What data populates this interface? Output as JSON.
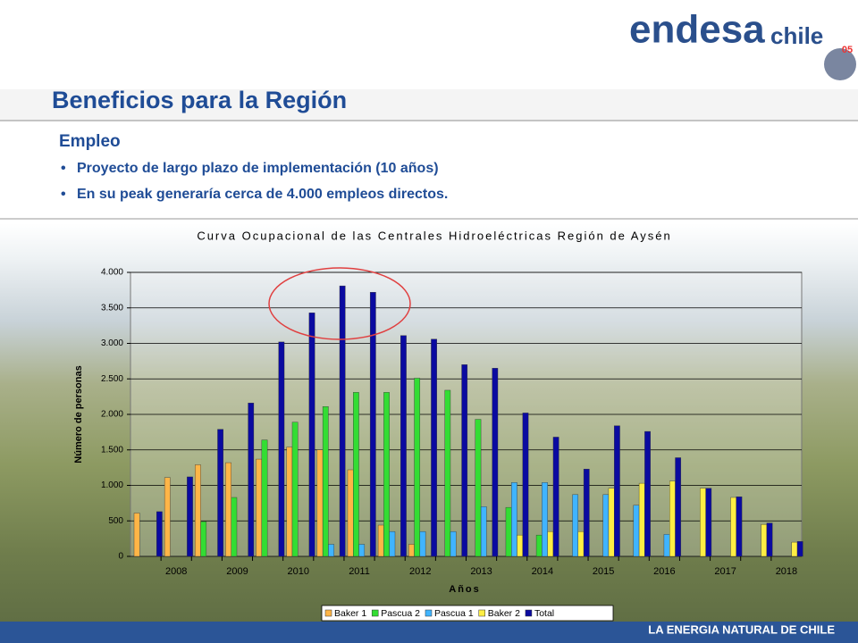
{
  "header": {
    "title": "Beneficios para la Región",
    "logo": "endesa",
    "logo_sub": "chile",
    "badge": "05"
  },
  "section": {
    "heading": "Empleo",
    "bullets": [
      "Proyecto de largo plazo de implementación (10 años)",
      "En su peak generaría cerca de 4.000 empleos directos."
    ]
  },
  "footer": "LA ENERGIA NATURAL DE CHILE",
  "chart_data": {
    "type": "bar",
    "title": "Curva Ocupacional de las Centrales Hidroeléctricas Región de Aysén",
    "x_label": "Años",
    "y_label": "Número de personas",
    "categories": [
      null,
      "2008",
      null,
      "2009",
      null,
      "2010",
      null,
      "2011",
      null,
      "2012",
      null,
      "2013",
      null,
      "2014",
      null,
      "2015",
      null,
      "2016",
      null,
      "2017",
      null,
      "2018"
    ],
    "series": [
      {
        "name": "Baker 1",
        "color": "#ffb547",
        "values": [
          610,
          1110,
          1290,
          1320,
          1370,
          1540,
          1500,
          1220,
          440,
          170,
          0,
          0,
          0,
          0,
          0,
          0,
          0,
          0,
          0,
          0,
          0,
          0
        ]
      },
      {
        "name": "Pascua 2",
        "color": "#33dd33",
        "values": [
          0,
          0,
          490,
          830,
          1640,
          1890,
          2110,
          2310,
          2310,
          2510,
          2340,
          1930,
          690,
          300,
          0,
          0,
          0,
          0,
          0,
          0,
          0,
          0
        ]
      },
      {
        "name": "Pascua 1",
        "color": "#40b4ff",
        "values": [
          0,
          0,
          0,
          0,
          0,
          0,
          170,
          170,
          350,
          350,
          350,
          700,
          1040,
          1040,
          870,
          870,
          720,
          310,
          0,
          0,
          0,
          0
        ]
      },
      {
        "name": "Baker 2",
        "color": "#ffee44",
        "values": [
          0,
          0,
          0,
          0,
          0,
          0,
          0,
          0,
          0,
          0,
          0,
          0,
          300,
          350,
          350,
          960,
          1030,
          1060,
          960,
          830,
          450,
          200
        ]
      },
      {
        "name": "Total",
        "color": "#0a0aa0",
        "values": [
          630,
          1120,
          1790,
          2160,
          3020,
          3430,
          3810,
          3720,
          3110,
          3060,
          2700,
          2650,
          2020,
          1680,
          1230,
          1840,
          1760,
          1390,
          960,
          840,
          470,
          210
        ]
      }
    ],
    "ylim": [
      0,
      4000
    ],
    "yticks": [
      0,
      500,
      {
        "value": 1000,
        "label": "1.000"
      },
      {
        "value": 1500,
        "label": "1.500"
      },
      {
        "value": 2000,
        "label": "2.000"
      },
      {
        "value": 2500,
        "label": "2.500"
      },
      {
        "value": 3000,
        "label": "3.000"
      },
      {
        "value": 3500,
        "label": "3.500"
      },
      {
        "value": 4000,
        "label": "4.000"
      }
    ],
    "grid": true,
    "legend": "bottom"
  }
}
